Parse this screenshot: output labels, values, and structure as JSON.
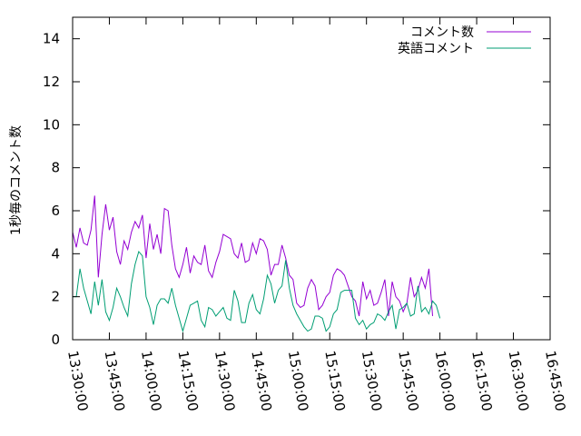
{
  "chart_data": {
    "type": "line",
    "title": "",
    "xlabel": "",
    "ylabel": "1秒毎のコメント数",
    "xlim": [
      "13:30:00",
      "16:45:00"
    ],
    "ylim": [
      0,
      15
    ],
    "x_ticks": [
      "13:30:00",
      "13:45:00",
      "14:00:00",
      "14:15:00",
      "14:30:00",
      "14:45:00",
      "15:00:00",
      "15:15:00",
      "15:30:00",
      "15:45:00",
      "16:00:00",
      "16:15:00",
      "16:30:00",
      "16:45:00"
    ],
    "y_ticks": [
      0,
      2,
      4,
      6,
      8,
      10,
      12,
      14
    ],
    "grid": false,
    "legend_position": "top-right",
    "x_interval_seconds": 90,
    "x_start": "13:30:00",
    "series": [
      {
        "name": "コメント数",
        "color": "#9400d3",
        "values": [
          5.0,
          4.3,
          5.2,
          4.5,
          4.4,
          5.1,
          6.7,
          2.9,
          4.9,
          6.3,
          5.1,
          5.7,
          4.1,
          3.5,
          4.6,
          4.2,
          5.0,
          5.5,
          5.2,
          5.8,
          3.8,
          5.4,
          4.2,
          4.9,
          4.0,
          6.1,
          6.0,
          4.4,
          3.3,
          2.9,
          3.5,
          4.3,
          3.1,
          3.9,
          3.6,
          3.5,
          4.4,
          3.2,
          2.9,
          3.6,
          4.1,
          4.9,
          4.8,
          4.7,
          4.0,
          3.8,
          4.5,
          3.6,
          3.7,
          4.5,
          4.0,
          4.7,
          4.6,
          4.2,
          3.0,
          3.5,
          3.5,
          4.4,
          3.8,
          3.0,
          2.8,
          1.7,
          1.5,
          1.6,
          2.4,
          2.8,
          2.5,
          1.4,
          1.6,
          2.0,
          2.2,
          3.0,
          3.3,
          3.2,
          3.0,
          2.5,
          2.0,
          1.8,
          1.1,
          2.7,
          1.9,
          2.3,
          1.6,
          1.7,
          2.2,
          2.8,
          1.1,
          2.7,
          2.0,
          1.8,
          1.3,
          1.7,
          2.9,
          2.0,
          2.3,
          2.9,
          2.4,
          3.3,
          1.1
        ]
      },
      {
        "name": "英語コメント",
        "color": "#009e73",
        "values": [
          2.0,
          2.0,
          3.3,
          2.4,
          1.8,
          1.2,
          2.7,
          1.6,
          2.8,
          1.3,
          0.9,
          1.5,
          2.4,
          2.0,
          1.5,
          1.1,
          2.6,
          3.5,
          4.1,
          3.9,
          2.0,
          1.5,
          0.7,
          1.6,
          1.9,
          1.9,
          1.7,
          2.4,
          1.6,
          1.0,
          0.4,
          1.0,
          1.6,
          1.7,
          1.8,
          0.9,
          0.6,
          1.5,
          1.4,
          1.1,
          1.3,
          1.5,
          1.0,
          0.9,
          2.3,
          1.8,
          0.8,
          0.8,
          1.7,
          2.1,
          1.4,
          1.2,
          1.9,
          3.0,
          2.6,
          1.7,
          2.3,
          2.5,
          3.7,
          2.4,
          1.6,
          1.2,
          0.9,
          0.6,
          0.4,
          0.5,
          1.1,
          1.1,
          1.0,
          0.4,
          0.6,
          1.2,
          1.4,
          2.2,
          2.3,
          2.3,
          2.3,
          1.0,
          0.7,
          0.9,
          0.5,
          0.7,
          0.8,
          1.2,
          1.1,
          0.9,
          1.3,
          1.6,
          0.5,
          1.4,
          1.5,
          1.7,
          1.1,
          1.2,
          2.5,
          1.3,
          1.5,
          1.2,
          1.8,
          1.6,
          1.0
        ]
      }
    ]
  }
}
